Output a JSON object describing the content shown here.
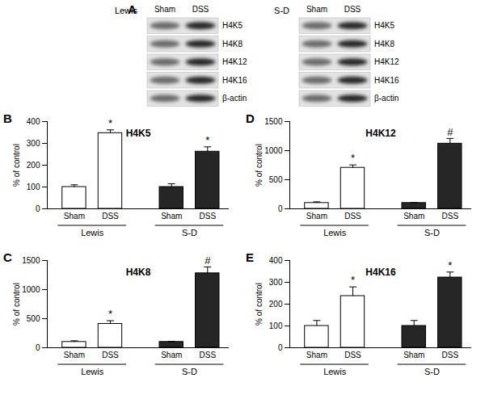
{
  "blot": {
    "label": "A",
    "panels": [
      {
        "strain": "Lewis",
        "lanes": [
          "Sham",
          "DSS"
        ],
        "rows": [
          "H4K5",
          "H4K8",
          "H4K12",
          "H4K16",
          "β-actin"
        ]
      },
      {
        "strain": "S-D",
        "lanes": [
          "Sham",
          "DSS"
        ],
        "rows": [
          "H4K5",
          "H4K8",
          "H4K12",
          "H4K16",
          "β-actin"
        ]
      }
    ]
  },
  "chart_data": [
    {
      "type": "bar",
      "panel": "B",
      "title": "H4K5",
      "ylabel": "% of control",
      "categories": [
        "Sham",
        "DSS"
      ],
      "series": [
        {
          "name": "Lewis",
          "color": "#ffffff",
          "values": [
            100,
            347
          ],
          "errors": [
            10,
            15
          ],
          "annotations": [
            null,
            "*"
          ]
        },
        {
          "name": "S-D",
          "color": "#262626",
          "values": [
            100,
            262
          ],
          "errors": [
            15,
            22
          ],
          "annotations": [
            null,
            "*"
          ]
        }
      ],
      "ylim": [
        0,
        400
      ],
      "yticks": [
        0,
        100,
        200,
        300,
        400
      ]
    },
    {
      "type": "bar",
      "panel": "D",
      "title": "H4K12",
      "ylabel": "% of control",
      "categories": [
        "Sham",
        "DSS"
      ],
      "series": [
        {
          "name": "Lewis",
          "color": "#ffffff",
          "values": [
            100,
            705
          ],
          "errors": [
            20,
            50
          ],
          "annotations": [
            null,
            "*"
          ]
        },
        {
          "name": "S-D",
          "color": "#262626",
          "values": [
            100,
            1120
          ],
          "errors": [
            10,
            90
          ],
          "annotations": [
            null,
            "#"
          ]
        }
      ],
      "ylim": [
        0,
        1500
      ],
      "yticks": [
        0,
        500,
        1000,
        1500
      ]
    },
    {
      "type": "bar",
      "panel": "C",
      "title": "H4K8",
      "ylabel": "% of control",
      "categories": [
        "Sham",
        "DSS"
      ],
      "series": [
        {
          "name": "Lewis",
          "color": "#ffffff",
          "values": [
            100,
            410
          ],
          "errors": [
            20,
            55
          ],
          "annotations": [
            null,
            "*"
          ]
        },
        {
          "name": "S-D",
          "color": "#262626",
          "values": [
            100,
            1280
          ],
          "errors": [
            10,
            110
          ],
          "annotations": [
            null,
            "#"
          ]
        }
      ],
      "ylim": [
        0,
        1500
      ],
      "yticks": [
        0,
        500,
        1000,
        1500
      ]
    },
    {
      "type": "bar",
      "panel": "E",
      "title": "H4K16",
      "ylabel": "% of control",
      "categories": [
        "Sham",
        "DSS"
      ],
      "series": [
        {
          "name": "Lewis",
          "color": "#ffffff",
          "values": [
            100,
            237
          ],
          "errors": [
            25,
            42
          ],
          "annotations": [
            null,
            "*"
          ]
        },
        {
          "name": "S-D",
          "color": "#262626",
          "values": [
            100,
            322
          ],
          "errors": [
            25,
            25
          ],
          "annotations": [
            null,
            "*"
          ]
        }
      ],
      "ylim": [
        0,
        400
      ],
      "yticks": [
        0,
        100,
        200,
        300,
        400
      ]
    }
  ]
}
